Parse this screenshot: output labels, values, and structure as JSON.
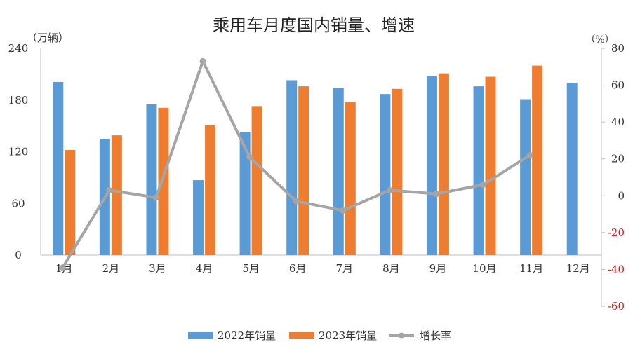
{
  "chart_data": {
    "type": "bar",
    "title": "乘用车月度国内销量、增速",
    "y_left_unit": "（万辆）",
    "y_right_unit": "（%）",
    "categories": [
      "1月",
      "2月",
      "3月",
      "4月",
      "5月",
      "6月",
      "7月",
      "8月",
      "9月",
      "10月",
      "11月",
      "12月"
    ],
    "y_left_range": [
      0,
      240
    ],
    "y_left_ticks": [
      "0",
      "60",
      "120",
      "180",
      "240"
    ],
    "y_right_range": [
      -60,
      80
    ],
    "y_right_ticks": [
      "-60",
      "-40",
      "-20",
      "0",
      "20",
      "40",
      "60",
      "80"
    ],
    "series": [
      {
        "name": "2022年销量",
        "type": "bar",
        "color": "#5B9BD5",
        "values": [
          201,
          135,
          175,
          87,
          143,
          203,
          194,
          187,
          208,
          196,
          181,
          200
        ]
      },
      {
        "name": "2023年销量",
        "type": "bar",
        "color": "#ED7D31",
        "values": [
          122,
          139,
          171,
          151,
          173,
          196,
          178,
          193,
          211,
          207,
          220,
          null
        ]
      },
      {
        "name": "增长率",
        "type": "line",
        "axis": "right",
        "color": "#A5A5A5",
        "values": [
          -39,
          3,
          -1,
          73,
          21,
          -3,
          -8,
          3,
          1,
          6,
          22,
          null
        ]
      }
    ],
    "legend_position": "bottom",
    "grid": false
  }
}
